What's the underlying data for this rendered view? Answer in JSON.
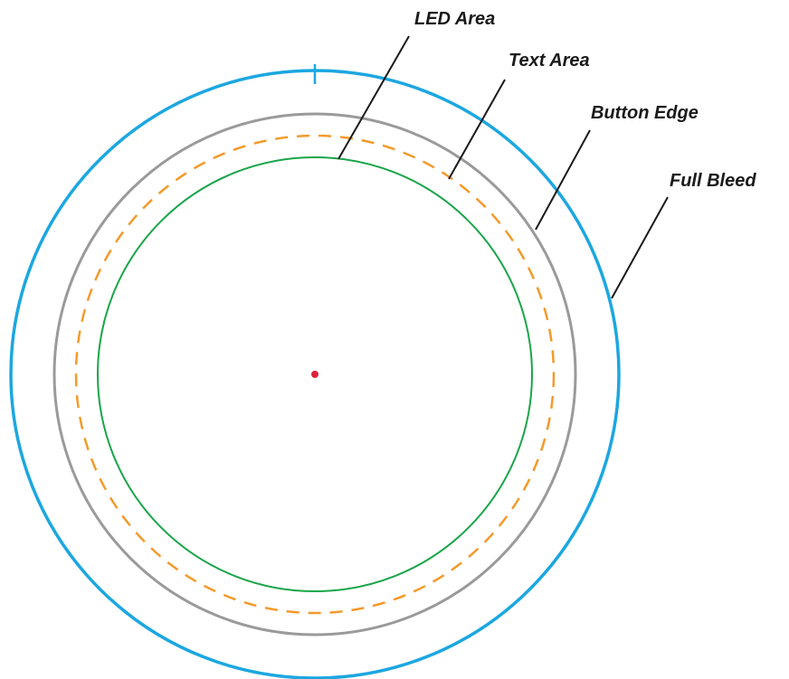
{
  "labels": {
    "led_area": "LED Area",
    "text_area": "Text Area",
    "button_edge": "Button Edge",
    "full_bleed": "Full Bleed"
  },
  "colors": {
    "full_bleed": "#1ca7e0",
    "button_edge": "#9a9a9a",
    "text_area": "#f39a2b",
    "led_area": "#1aa54a",
    "center_point": "#e0203c",
    "leader": "#1a1a1a"
  }
}
